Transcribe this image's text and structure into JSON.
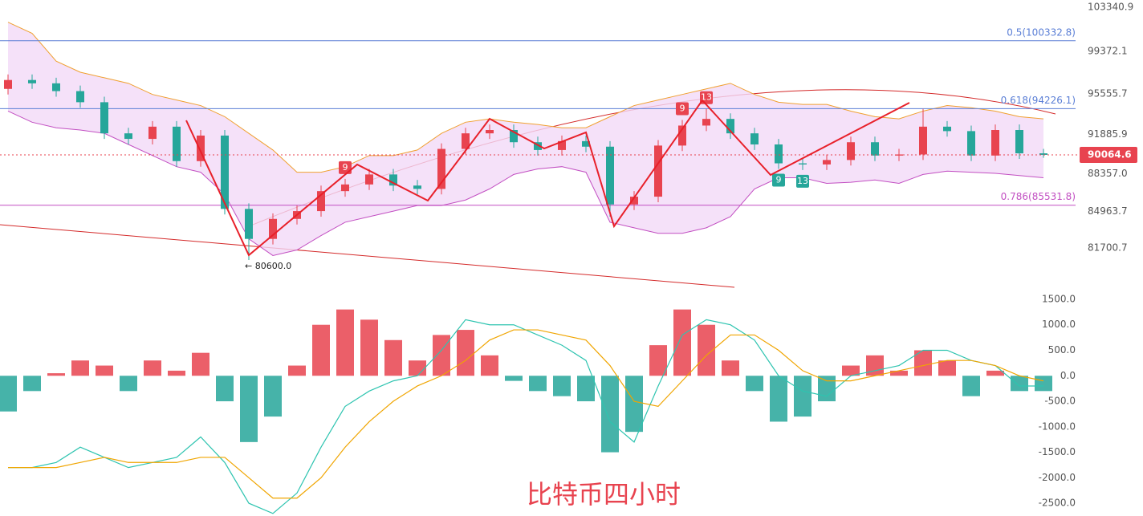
{
  "chart_data": [
    {
      "type": "candlestick",
      "title": "比特币四小时",
      "up_color": "#e8434f",
      "down_color": "#26a69a",
      "ylim": [
        78000,
        104000
      ],
      "yticks": [
        {
          "value": 103340.9,
          "label": "103340.9"
        },
        {
          "value": 99372.1,
          "label": "99372.1"
        },
        {
          "value": 95555.7,
          "label": "95555.7"
        },
        {
          "value": 91885.9,
          "label": "91885.9"
        },
        {
          "value": 88357.0,
          "label": "88357.0"
        },
        {
          "value": 84963.7,
          "label": "84963.7"
        },
        {
          "value": 81700.7,
          "label": "81700.7"
        }
      ],
      "levels": [
        {
          "value": 100332.8,
          "label": "0.5(100332.8)",
          "color": "#5b7fd6"
        },
        {
          "value": 94226.1,
          "label": "0.618(94226.1)",
          "color": "#5b7fd6"
        },
        {
          "value": 85531.8,
          "label": "0.786(85531.8)",
          "color": "#c24fc2"
        }
      ],
      "last_price": {
        "value": 90064.6,
        "label": "90064.6"
      },
      "low_label": {
        "value": 80600,
        "label": "← 80600.0"
      },
      "open": [
        96000,
        96800,
        96500,
        95800,
        94800,
        92000,
        91500,
        92600,
        89500,
        91800,
        85200,
        82500,
        84300,
        85000,
        86800,
        87400,
        88300,
        87300,
        87000,
        90600,
        92000,
        92300,
        91200,
        90500,
        91300,
        90800,
        85600,
        86300,
        90900,
        92700,
        93300,
        92000,
        91000,
        89300,
        89200,
        89600,
        91200,
        90000,
        90100,
        92600,
        92200,
        90000,
        92300,
        90200
      ],
      "high": [
        97300,
        97300,
        97000,
        96300,
        95300,
        92500,
        93100,
        93100,
        92300,
        92300,
        85700,
        84800,
        85500,
        87300,
        87900,
        88800,
        88800,
        87800,
        91100,
        92500,
        92800,
        92800,
        91700,
        91800,
        91800,
        91300,
        86800,
        91400,
        93200,
        94200,
        93800,
        92500,
        91500,
        89800,
        90100,
        91700,
        91700,
        90600,
        94200,
        93100,
        92700,
        92800,
        92800,
        90600
      ],
      "low": [
        95500,
        96000,
        95300,
        94300,
        91500,
        91000,
        91000,
        89000,
        89000,
        84700,
        80600,
        82000,
        83800,
        84500,
        86300,
        86900,
        86800,
        86500,
        86500,
        90100,
        91500,
        90700,
        90000,
        90000,
        90300,
        84500,
        85100,
        85800,
        90400,
        92200,
        91500,
        90500,
        88800,
        88700,
        88700,
        89100,
        89500,
        89500,
        89600,
        91700,
        89500,
        89500,
        89700,
        89800
      ],
      "close": [
        96800,
        96500,
        95800,
        94800,
        92000,
        91500,
        92600,
        89500,
        91800,
        85200,
        82500,
        84300,
        85000,
        86800,
        87400,
        88300,
        87300,
        87000,
        90600,
        92000,
        92300,
        91200,
        90500,
        91300,
        90800,
        85600,
        86300,
        90900,
        92700,
        93300,
        92000,
        91000,
        89300,
        89200,
        89600,
        91200,
        90000,
        90100,
        92600,
        92200,
        90000,
        92300,
        90200,
        90064.6
      ],
      "upper_band": [
        102000,
        101000,
        98500,
        97500,
        97000,
        96500,
        95500,
        95000,
        94500,
        93500,
        92000,
        90500,
        88500,
        88500,
        89000,
        90000,
        90000,
        90500,
        92000,
        93000,
        93300,
        93000,
        92800,
        92500,
        92500,
        93500,
        94500,
        95000,
        95500,
        96000,
        96500,
        95500,
        94800,
        94600,
        94600,
        94000,
        93500,
        93300,
        94000,
        94500,
        94300,
        94000,
        93500,
        93300
      ],
      "lower_band": [
        94000,
        93000,
        92500,
        92300,
        92000,
        91000,
        90000,
        89000,
        88500,
        86500,
        82500,
        81000,
        81500,
        82800,
        84000,
        84500,
        85000,
        85500,
        85500,
        86000,
        87000,
        88300,
        88800,
        89000,
        88500,
        84000,
        83500,
        83000,
        83000,
        83500,
        84500,
        87000,
        88000,
        88000,
        87500,
        87600,
        87800,
        87500,
        88300,
        88600,
        88500,
        88400,
        88200,
        88000
      ],
      "annotations": [
        {
          "label": "9",
          "index": 14,
          "side": "up"
        },
        {
          "label": "9",
          "index": 28,
          "side": "up"
        },
        {
          "label": "13",
          "index": 29,
          "side": "up"
        },
        {
          "label": "9",
          "index": 32,
          "side": "down"
        },
        {
          "label": "13",
          "index": 33,
          "side": "down"
        }
      ]
    },
    {
      "type": "macd",
      "ylim": [
        -2750,
        1625
      ],
      "yticks": [
        {
          "value": 1500,
          "label": "1500.0"
        },
        {
          "value": 1000,
          "label": "1000.0"
        },
        {
          "value": 500,
          "label": "500.0"
        },
        {
          "value": 0,
          "label": "0.0"
        },
        {
          "value": -500,
          "label": "-500.0"
        },
        {
          "value": -1000,
          "label": "-1000.0"
        },
        {
          "value": -1500,
          "label": "-1500.0"
        },
        {
          "value": -2000,
          "label": "-2000.0"
        },
        {
          "value": -2500,
          "label": "-2500.0"
        }
      ],
      "histogram": {
        "up_color": "#e8434f",
        "down_color": "#26a69a",
        "values": [
          -700,
          -300,
          50,
          300,
          200,
          -300,
          300,
          100,
          450,
          -500,
          -1300,
          -800,
          200,
          1000,
          1300,
          1100,
          700,
          300,
          800,
          900,
          400,
          -100,
          -300,
          -400,
          -500,
          -1500,
          -1100,
          600,
          1300,
          1000,
          300,
          -300,
          -900,
          -800,
          -500,
          200,
          400,
          100,
          500,
          300,
          -400,
          100,
          -300,
          -300
        ]
      },
      "series": [
        {
          "color": "#2ec4b0",
          "values": [
            -1800,
            -1800,
            -1700,
            -1400,
            -1600,
            -1800,
            -1700,
            -1600,
            -1200,
            -1700,
            -2500,
            -2700,
            -2300,
            -1400,
            -600,
            -300,
            -100,
            0,
            500,
            1100,
            1000,
            1000,
            800,
            600,
            300,
            -900,
            -1300,
            -200,
            800,
            1100,
            1000,
            700,
            0,
            -300,
            -400,
            0,
            100,
            200,
            500,
            500,
            300,
            200,
            -200,
            -200
          ]
        },
        {
          "color": "#f0a500",
          "values": [
            -1800,
            -1800,
            -1800,
            -1700,
            -1600,
            -1700,
            -1700,
            -1700,
            -1600,
            -1600,
            -2000,
            -2400,
            -2400,
            -2000,
            -1400,
            -900,
            -500,
            -200,
            0,
            300,
            700,
            900,
            900,
            800,
            700,
            200,
            -500,
            -600,
            -100,
            400,
            800,
            800,
            500,
            100,
            -100,
            -100,
            0,
            100,
            200,
            300,
            300,
            200,
            0,
            -100
          ]
        }
      ]
    }
  ]
}
